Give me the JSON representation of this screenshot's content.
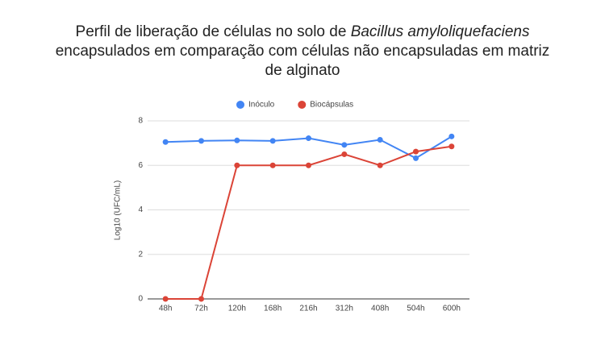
{
  "chart_data": {
    "type": "line",
    "title": [
      [
        {
          "text": "Perfil de liberação de células no solo de ",
          "italic": false
        },
        {
          "text": "Bacillus amyloliquefaciens",
          "italic": true
        }
      ],
      [
        {
          "text": "encapsulados em comparação com células não encapsuladas em matriz",
          "italic": false
        }
      ],
      [
        {
          "text": "de alginato",
          "italic": false
        }
      ]
    ],
    "y_label": "Log10 (UFC/mL)",
    "categories": [
      "48h",
      "72h",
      "120h",
      "168h",
      "216h",
      "312h",
      "408h",
      "504h",
      "600h"
    ],
    "series": [
      {
        "name": "Inóculo",
        "color": "#4285f4",
        "values": [
          7.05,
          7.1,
          7.12,
          7.1,
          7.22,
          6.92,
          7.15,
          6.32,
          7.3
        ]
      },
      {
        "name": "Biocápsulas",
        "color": "#db4437",
        "values": [
          0,
          0,
          6.0,
          6.0,
          6.0,
          6.5,
          6.0,
          6.62,
          6.85
        ]
      }
    ],
    "ylim": [
      0,
      8
    ],
    "yticks": [
      0,
      2,
      4,
      6,
      8
    ],
    "grid": true,
    "legend": "top"
  }
}
